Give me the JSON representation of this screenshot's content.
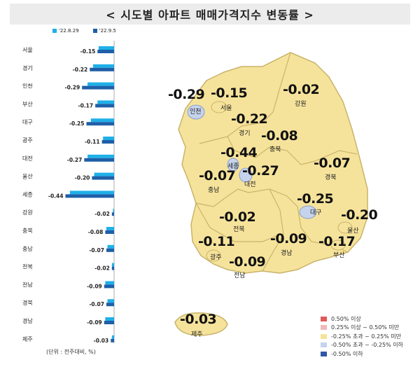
{
  "title": "< 시도별 아파트 매매가격지수 변동률 >",
  "legend": [
    {
      "label": "'22.8.29",
      "color": "#1fb0e8"
    },
    {
      "label": "'22.9.5",
      "color": "#1f5fa8"
    }
  ],
  "unit_note": "(단위 : 전주대비, %)",
  "chart_data": {
    "type": "bar",
    "orientation": "horizontal",
    "categories": [
      "서울",
      "경기",
      "인천",
      "부산",
      "대구",
      "광주",
      "대전",
      "울산",
      "세종",
      "강원",
      "충북",
      "충남",
      "전북",
      "전남",
      "경북",
      "경남",
      "제주"
    ],
    "series": [
      {
        "name": "'22.8.29",
        "values": [
          -0.14,
          -0.19,
          -0.24,
          -0.15,
          -0.21,
          -0.1,
          -0.24,
          -0.18,
          -0.4,
          -0.01,
          -0.07,
          -0.06,
          -0.02,
          -0.08,
          -0.06,
          -0.08,
          -0.02
        ]
      },
      {
        "name": "'22.9.5",
        "values": [
          -0.15,
          -0.22,
          -0.29,
          -0.17,
          -0.25,
          -0.11,
          -0.27,
          -0.2,
          -0.44,
          -0.02,
          -0.08,
          -0.07,
          -0.02,
          -0.09,
          -0.07,
          -0.09,
          -0.03
        ]
      }
    ],
    "value_labels": [
      "-0.15",
      "-0.22",
      "-0.29",
      "-0.17",
      "-0.25",
      "-0.11",
      "-0.27",
      "-0.20",
      "-0.44",
      "-0.02",
      "-0.08",
      "-0.07",
      "-0.02",
      "-0.09",
      "-0.07",
      "-0.09",
      "-0.03"
    ],
    "xlim": [
      -0.5,
      0
    ]
  },
  "map": {
    "regions": [
      {
        "name": "인천",
        "value": "-0.29"
      },
      {
        "name": "서울",
        "value": "-0.15"
      },
      {
        "name": "강원",
        "value": "-0.02"
      },
      {
        "name": "경기",
        "value": "-0.22"
      },
      {
        "name": "충북",
        "value": "-0.08"
      },
      {
        "name": "세종",
        "value": "-0.44"
      },
      {
        "name": "대전",
        "value": "-0.27"
      },
      {
        "name": "충남",
        "value": "-0.07"
      },
      {
        "name": "경북",
        "value": "-0.07"
      },
      {
        "name": "대구",
        "value": "-0.25"
      },
      {
        "name": "울산",
        "value": "-0.20"
      },
      {
        "name": "전북",
        "value": "-0.02"
      },
      {
        "name": "광주",
        "value": "-0.11"
      },
      {
        "name": "경남",
        "value": "-0.09"
      },
      {
        "name": "부산",
        "value": "-0.17"
      },
      {
        "name": "전남",
        "value": "-0.09"
      },
      {
        "name": "제주",
        "value": "-0.03"
      }
    ],
    "colors": {
      "land": "#f6e39b",
      "border": "#c8b46a",
      "metro": "#c6d3ec",
      "metro_border": "#8aa0cc"
    }
  },
  "map_legend": [
    {
      "label": "0.50% 이상",
      "color": "#e05a5a"
    },
    {
      "label": "0.25% 이상 ~ 0.50% 미만",
      "color": "#f0b8b8"
    },
    {
      "label": "-0.25% 초과 ~ 0.25% 미만",
      "color": "#f6e39b"
    },
    {
      "label": "-0.50% 초과 ~ -0.25% 이하",
      "color": "#c6d3ec"
    },
    {
      "label": "-0.50% 이하",
      "color": "#2f56a8"
    }
  ]
}
